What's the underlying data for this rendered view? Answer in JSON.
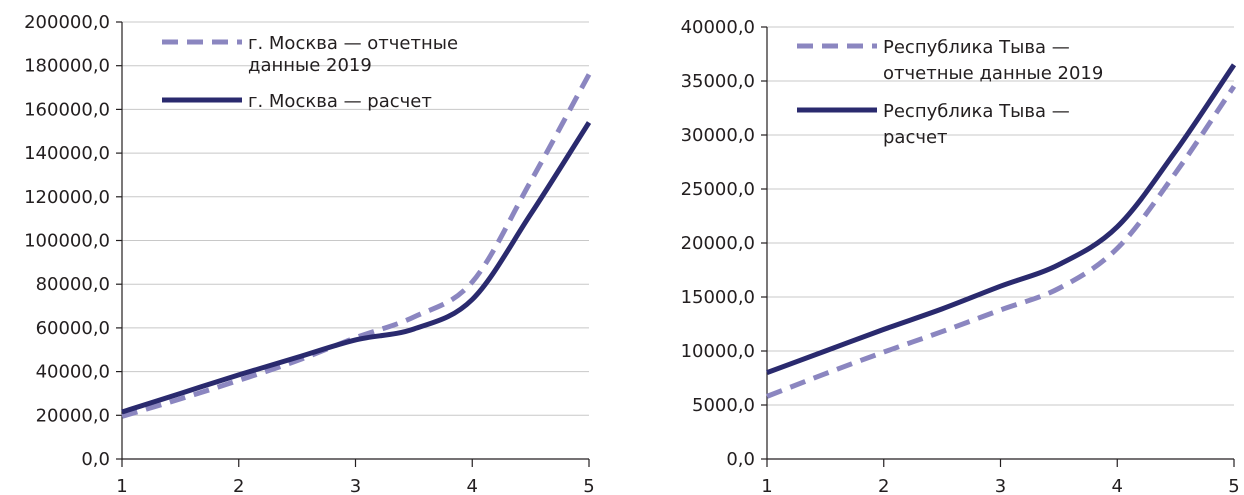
{
  "colors": {
    "reported": "#8b86c0",
    "calculated": "#2a2a6e",
    "grid": "#c8c8c8",
    "axis": "#231f20"
  },
  "chart_data": [
    {
      "type": "line",
      "x": [
        1,
        2,
        3,
        4,
        5
      ],
      "xlim": [
        1,
        5
      ],
      "ylim": [
        0,
        200000
      ],
      "ytick_step": 20000,
      "x_tick_labels": [
        "1",
        "2",
        "3",
        "4",
        "5"
      ],
      "y_tick_labels": [
        "0,0",
        "20000,0",
        "40000,0",
        "60000,0",
        "80000,0",
        "100000,0",
        "120000,0",
        "140000,0",
        "160000,0",
        "180000,0",
        "200000,0"
      ],
      "grid": true,
      "legend_position": "top-center",
      "series": [
        {
          "name": "г. Москва — отчетные данные 2019",
          "legend_lines": [
            "г. Москва — отчетные",
            "данные 2019"
          ],
          "style": "dashed",
          "x": [
            1,
            1.5,
            2,
            2.5,
            3,
            3.5,
            4,
            4.5,
            5
          ],
          "values": [
            19500,
            27500,
            36000,
            45000,
            55500,
            65000,
            81000,
            127000,
            176000
          ]
        },
        {
          "name": "г. Москва — расчет",
          "legend_lines": [
            "г. Москва — расчет"
          ],
          "style": "solid",
          "x": [
            1,
            1.5,
            2,
            2.5,
            3,
            3.5,
            4,
            4.5,
            5
          ],
          "values": [
            21500,
            30000,
            38500,
            46500,
            54500,
            59500,
            73000,
            112000,
            154000
          ]
        }
      ]
    },
    {
      "type": "line",
      "x": [
        1,
        2,
        3,
        4,
        5
      ],
      "xlim": [
        1,
        5
      ],
      "ylim": [
        0,
        40000
      ],
      "ytick_step": 5000,
      "x_tick_labels": [
        "1",
        "2",
        "3",
        "4",
        "5"
      ],
      "y_tick_labels": [
        "0,0",
        "5000,0",
        "10000,0",
        "15000,0",
        "20000,0",
        "25000,0",
        "30000,0",
        "35000,0",
        "40000,0"
      ],
      "grid": true,
      "legend_position": "top-center",
      "series": [
        {
          "name": "Республика Тыва — отчетные данные 2019",
          "legend_lines": [
            "Республика Тыва —",
            "отчетные данные 2019"
          ],
          "style": "dashed",
          "x": [
            1,
            1.5,
            2,
            2.5,
            3,
            3.5,
            4,
            4.5,
            5
          ],
          "values": [
            5800,
            7900,
            9900,
            11800,
            13800,
            15800,
            19500,
            26500,
            34500
          ]
        },
        {
          "name": "Республика Тыва — расчет",
          "legend_lines": [
            "Республика Тыва —",
            "расчет"
          ],
          "style": "solid",
          "x": [
            1,
            1.5,
            2,
            2.5,
            3,
            3.5,
            4,
            4.5,
            5
          ],
          "values": [
            8000,
            10000,
            12000,
            13900,
            16000,
            18000,
            21500,
            28500,
            36500
          ]
        }
      ]
    }
  ]
}
